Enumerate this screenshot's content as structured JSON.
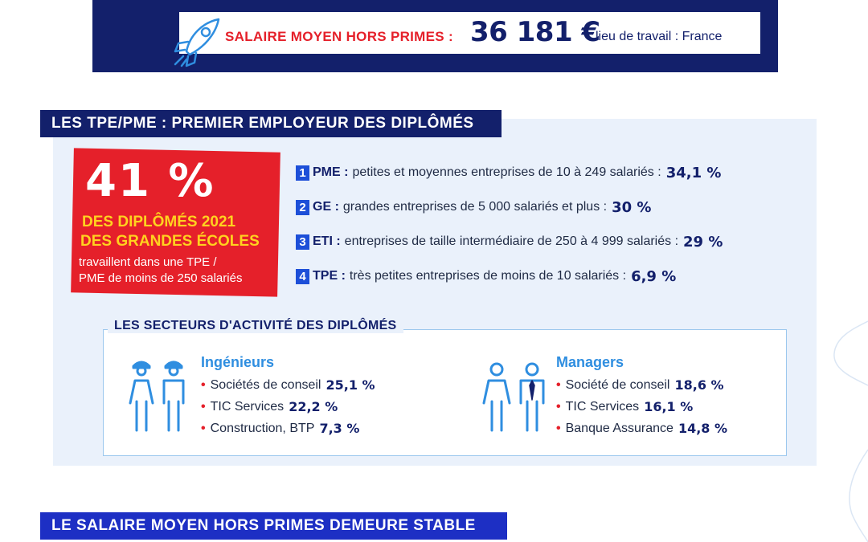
{
  "banner": {
    "salary_label": "SALAIRE MOYEN HORS PRIMES :",
    "salary_value": "36 181 €",
    "salary_note": "lieu de travail : France",
    "icon": "rocket-icon"
  },
  "section1": {
    "title": "LES TPE/PME : PREMIER EMPLOYEUR DES DIPLÔMÉS",
    "stat": {
      "value": "41 %",
      "line1": "DES DIPLÔMÉS 2021",
      "line2": "DES GRANDES ÉCOLES",
      "desc1": "travaillent dans une TPE /",
      "desc2": "PME de moins de 250 salariés"
    },
    "ranking": [
      {
        "rank": "1",
        "code": "PME :",
        "text": "petites et moyennes entreprises de 10 à 249 salariés :",
        "pct": "34,1 %"
      },
      {
        "rank": "2",
        "code": "GE :",
        "text": "grandes entreprises de 5 000 salariés et plus :",
        "pct": "30 %"
      },
      {
        "rank": "3",
        "code": "ETI :",
        "text": "entreprises de taille intermédiaire de 250 à 4 999 salariés :",
        "pct": "29 %"
      },
      {
        "rank": "4",
        "code": "TPE :",
        "text": "très petites entreprises de moins de 10 salariés :",
        "pct": "6,9 %"
      }
    ],
    "sectors": {
      "title": "LES SECTEURS D'ACTIVITÉ DES DIPLÔMÉS",
      "groups": [
        {
          "heading": "Ingénieurs",
          "icon": "engineers-icon",
          "items": [
            {
              "label": "Sociétés de conseil",
              "pct": "25,1 %"
            },
            {
              "label": "TIC Services",
              "pct": "22,2 %"
            },
            {
              "label": "Construction, BTP",
              "pct": "7,3 %"
            }
          ]
        },
        {
          "heading": "Managers",
          "icon": "managers-icon",
          "items": [
            {
              "label": "Société de conseil",
              "pct": "18,6 %"
            },
            {
              "label": "TIC Services",
              "pct": "16,1 %"
            },
            {
              "label": "Banque Assurance",
              "pct": "14,8 %"
            }
          ]
        }
      ]
    }
  },
  "section2": {
    "title": "LE SALAIRE MOYEN HORS PRIMES DEMEURE STABLE"
  },
  "colors": {
    "navy": "#13206b",
    "red": "#e5202a",
    "yellow": "#ffd21f",
    "blue": "#2f8ee0",
    "panel": "#eaf1fb"
  }
}
